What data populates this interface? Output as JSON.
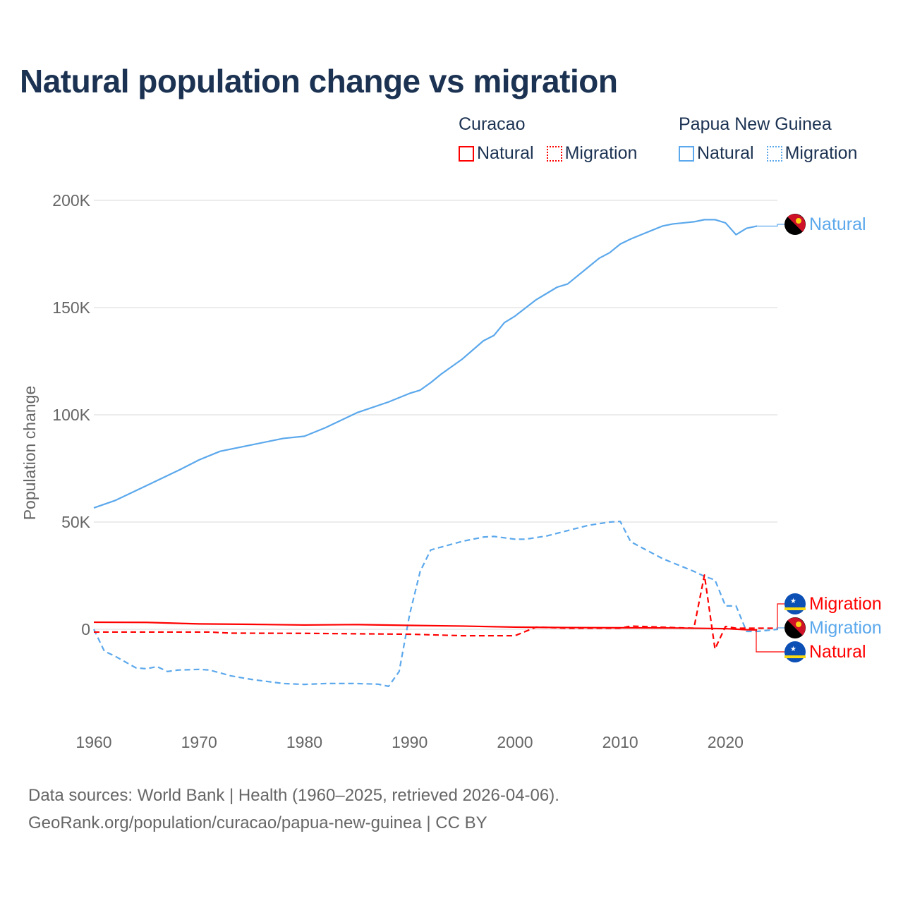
{
  "title": "Natural population change vs migration",
  "legend": {
    "groups": [
      {
        "name": "Curacao",
        "items": [
          {
            "label": "Natural",
            "style": "solid",
            "color": "#ff0000"
          },
          {
            "label": "Migration",
            "style": "dotted",
            "color": "#ff0000"
          }
        ]
      },
      {
        "name": "Papua New Guinea",
        "items": [
          {
            "label": "Natural",
            "style": "solid",
            "color": "#5ba8ec"
          },
          {
            "label": "Migration",
            "style": "dotted",
            "color": "#5ba8ec"
          }
        ]
      }
    ]
  },
  "footer": {
    "line1": "Data sources: World Bank | Health (1960–2025, retrieved 2026-04-06).",
    "line2": "GeoRank.org/population/curacao/papua-new-guinea | CC BY"
  },
  "chart_data": {
    "type": "line",
    "title": "Natural population change vs migration",
    "xlabel": "",
    "ylabel": "Population change",
    "xlim": [
      1960,
      2025
    ],
    "ylim": [
      -40000,
      200000
    ],
    "xticks": [
      {
        "v": 1960,
        "label": "1960"
      },
      {
        "v": 1970,
        "label": "1970"
      },
      {
        "v": 1980,
        "label": "1980"
      },
      {
        "v": 1990,
        "label": "1990"
      },
      {
        "v": 2000,
        "label": "2000"
      },
      {
        "v": 2010,
        "label": "2010"
      },
      {
        "v": 2020,
        "label": "2020"
      }
    ],
    "yticks": [
      {
        "v": 0,
        "label": "0"
      },
      {
        "v": 50000,
        "label": "50K"
      },
      {
        "v": 100000,
        "label": "100K"
      },
      {
        "v": 150000,
        "label": "150K"
      },
      {
        "v": 200000,
        "label": "200K"
      }
    ],
    "series": [
      {
        "name": "Papua New Guinea Natural",
        "country": "Papua New Guinea",
        "end_label": "Natural",
        "color": "#5ba8ec",
        "dash": false,
        "points": [
          [
            1960,
            56600
          ],
          [
            1962,
            60000
          ],
          [
            1965,
            67000
          ],
          [
            1968,
            74000
          ],
          [
            1970,
            79000
          ],
          [
            1972,
            83000
          ],
          [
            1975,
            86000
          ],
          [
            1978,
            89000
          ],
          [
            1980,
            90000
          ],
          [
            1982,
            94000
          ],
          [
            1985,
            101000
          ],
          [
            1988,
            106000
          ],
          [
            1990,
            110000
          ],
          [
            1991,
            111500
          ],
          [
            1992,
            115000
          ],
          [
            1993,
            119000
          ],
          [
            1995,
            126000
          ],
          [
            1997,
            134500
          ],
          [
            1998,
            137000
          ],
          [
            1999,
            143000
          ],
          [
            2000,
            146000
          ],
          [
            2002,
            153600
          ],
          [
            2004,
            159500
          ],
          [
            2005,
            161000
          ],
          [
            2007,
            169000
          ],
          [
            2008,
            173000
          ],
          [
            2009,
            175600
          ],
          [
            2010,
            179600
          ],
          [
            2011,
            182000
          ],
          [
            2012,
            184000
          ],
          [
            2013,
            186000
          ],
          [
            2014,
            188000
          ],
          [
            2015,
            189000
          ],
          [
            2016,
            189500
          ],
          [
            2017,
            190000
          ],
          [
            2018,
            191000
          ],
          [
            2019,
            191000
          ],
          [
            2020,
            189500
          ],
          [
            2021,
            184000
          ],
          [
            2022,
            187000
          ],
          [
            2023,
            188000
          ]
        ]
      },
      {
        "name": "Papua New Guinea Migration",
        "country": "Papua New Guinea",
        "end_label": "Migration",
        "color": "#5ba8ec",
        "dash": true,
        "points": [
          [
            1960,
            0
          ],
          [
            1961,
            -10200
          ],
          [
            1962,
            -12500
          ],
          [
            1964,
            -18000
          ],
          [
            1965,
            -18400
          ],
          [
            1966,
            -17400
          ],
          [
            1967,
            -19700
          ],
          [
            1968,
            -19000
          ],
          [
            1970,
            -18700
          ],
          [
            1971,
            -19000
          ],
          [
            1973,
            -21700
          ],
          [
            1975,
            -23400
          ],
          [
            1978,
            -25300
          ],
          [
            1980,
            -25700
          ],
          [
            1982,
            -25300
          ],
          [
            1985,
            -25300
          ],
          [
            1987,
            -25600
          ],
          [
            1988,
            -26600
          ],
          [
            1989,
            -19700
          ],
          [
            1990,
            7000
          ],
          [
            1991,
            27000
          ],
          [
            1992,
            37000
          ],
          [
            1995,
            41000
          ],
          [
            1997,
            43000
          ],
          [
            1998,
            43300
          ],
          [
            2000,
            42000
          ],
          [
            2001,
            42000
          ],
          [
            2003,
            43500
          ],
          [
            2005,
            46000
          ],
          [
            2007,
            48500
          ],
          [
            2009,
            50000
          ],
          [
            2010,
            50300
          ],
          [
            2011,
            40800
          ],
          [
            2014,
            33000
          ],
          [
            2017,
            27000
          ],
          [
            2018,
            24700
          ],
          [
            2019,
            23000
          ],
          [
            2020,
            10900
          ],
          [
            2021,
            10900
          ],
          [
            2022,
            -1000
          ],
          [
            2023,
            -1000
          ],
          [
            2024,
            -500
          ],
          [
            2025,
            0
          ]
        ]
      },
      {
        "name": "Curacao Natural",
        "country": "Curacao",
        "end_label": "Natural",
        "color": "#ff0000",
        "dash": false,
        "points": [
          [
            1960,
            3300
          ],
          [
            1965,
            3200
          ],
          [
            1970,
            2500
          ],
          [
            1975,
            2300
          ],
          [
            1980,
            2000
          ],
          [
            1985,
            2200
          ],
          [
            1990,
            1800
          ],
          [
            1995,
            1500
          ],
          [
            2000,
            1000
          ],
          [
            2005,
            800
          ],
          [
            2010,
            700
          ],
          [
            2015,
            600
          ],
          [
            2020,
            300
          ],
          [
            2022,
            -200
          ],
          [
            2023,
            -300
          ]
        ]
      },
      {
        "name": "Curacao Migration",
        "country": "Curacao",
        "end_label": "Migration",
        "color": "#ff0000",
        "dash": true,
        "points": [
          [
            1960,
            -1300
          ],
          [
            1965,
            -1300
          ],
          [
            1971,
            -1300
          ],
          [
            1973,
            -1800
          ],
          [
            1980,
            -1900
          ],
          [
            1990,
            -2300
          ],
          [
            1995,
            -3000
          ],
          [
            2000,
            -3000
          ],
          [
            2002,
            1000
          ],
          [
            2005,
            500
          ],
          [
            2010,
            500
          ],
          [
            2011,
            1500
          ],
          [
            2015,
            800
          ],
          [
            2017,
            500
          ],
          [
            2018,
            25300
          ],
          [
            2019,
            -9200
          ],
          [
            2020,
            1300
          ],
          [
            2021,
            500
          ],
          [
            2025,
            500
          ]
        ]
      }
    ]
  }
}
